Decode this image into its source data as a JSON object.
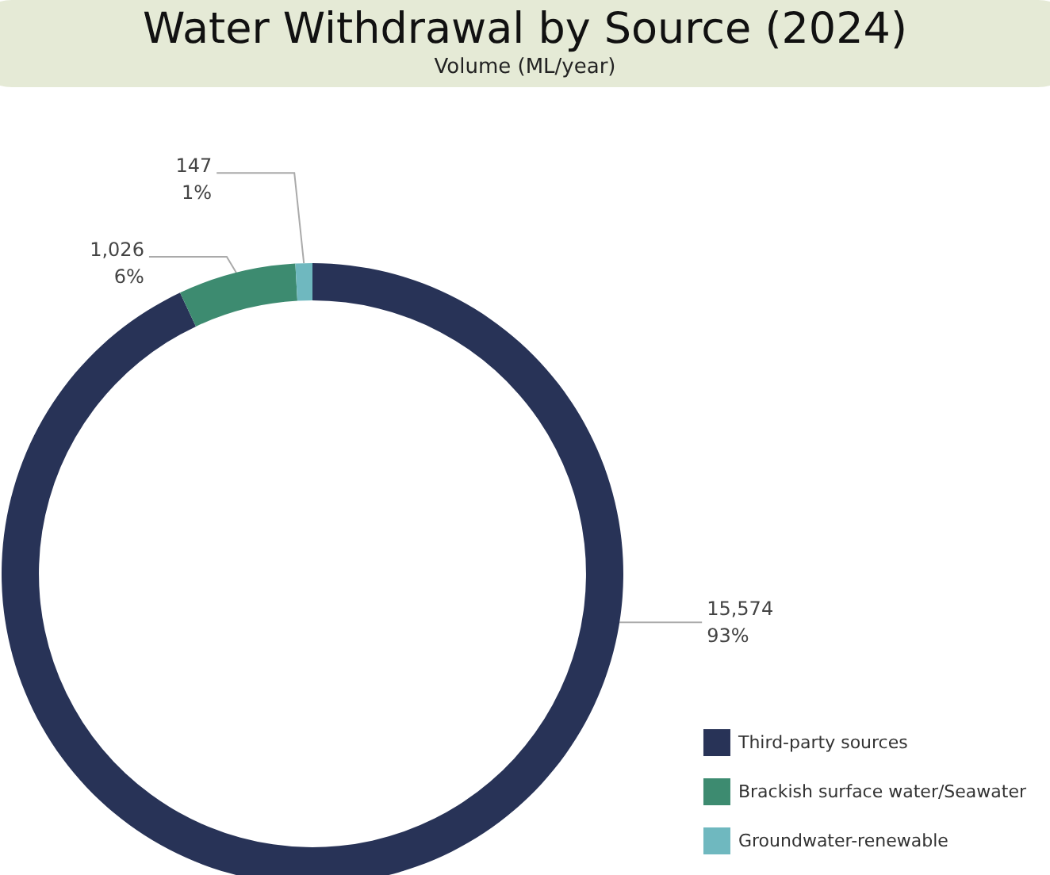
{
  "chart_data": {
    "type": "donut",
    "title": "Water Withdrawal by Source (2024)",
    "subtitle": "Volume (ML/year)",
    "categories": [
      "Third-party sources",
      "Brackish surface water/Seawater",
      "Groundwater-renewable"
    ],
    "values": [
      15574,
      1026,
      147
    ],
    "colors": [
      "#283357",
      "#3d8b70",
      "#6fb8bf"
    ],
    "value_labels": [
      "15,574\n93%",
      "1,026\n6%",
      "147\n1%"
    ],
    "legend": "bottom right"
  }
}
